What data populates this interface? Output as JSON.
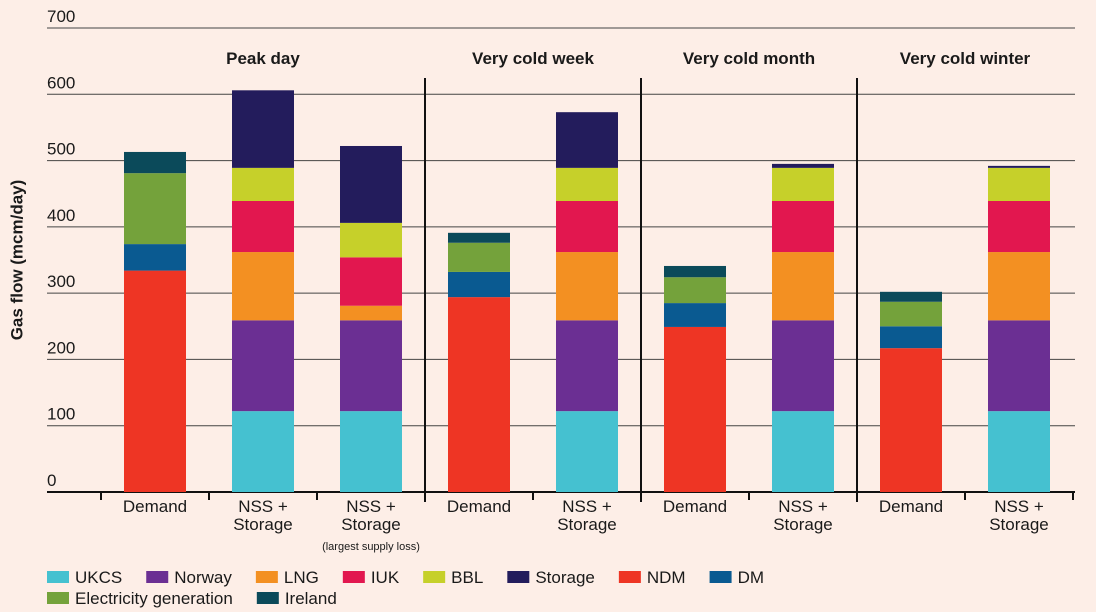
{
  "chart_data": {
    "type": "stacked_bar",
    "y_label": "Gas flow (mcm/day)",
    "groups": [
      "Peak day",
      "Very cold week",
      "Very cold month",
      "Very cold winter"
    ],
    "categories": [
      "Demand",
      "NSS + Storage",
      "NSS + Storage",
      "Demand",
      "NSS + Storage",
      "Demand",
      "NSS + Storage",
      "Demand",
      "NSS + Storage"
    ],
    "note": "(largest supply loss)",
    "series": [
      {
        "name": "UKCS",
        "color": "#45c1d0",
        "values": [
          null,
          122,
          122,
          null,
          122,
          null,
          122,
          null,
          122
        ]
      },
      {
        "name": "Norway",
        "color": "#6b2f93",
        "values": [
          null,
          137,
          137,
          null,
          137,
          null,
          137,
          null,
          137
        ]
      },
      {
        "name": "LNG",
        "color": "#f39022",
        "values": [
          null,
          103,
          22,
          null,
          103,
          null,
          103,
          null,
          103
        ]
      },
      {
        "name": "IUK",
        "color": "#e2174f",
        "values": [
          null,
          77,
          73,
          null,
          77,
          null,
          77,
          null,
          77
        ]
      },
      {
        "name": "BBL",
        "color": "#c6d02a",
        "values": [
          null,
          50,
          52,
          null,
          50,
          null,
          50,
          null,
          50
        ]
      },
      {
        "name": "Storage",
        "color": "#231c5c",
        "values": [
          null,
          117,
          116,
          null,
          84,
          null,
          6,
          null,
          3
        ]
      },
      {
        "name": "NDM",
        "color": "#ee3524",
        "values": [
          334,
          null,
          null,
          294,
          null,
          249,
          null,
          217,
          null
        ]
      },
      {
        "name": "DM",
        "color": "#0a5a91",
        "values": [
          40,
          null,
          null,
          38,
          null,
          36,
          null,
          33,
          null
        ]
      },
      {
        "name": "Electricity generation",
        "color": "#74a23b",
        "values": [
          107,
          null,
          null,
          44,
          null,
          39,
          null,
          37,
          null
        ]
      },
      {
        "name": "Ireland",
        "color": "#0b4a5a",
        "values": [
          32,
          null,
          null,
          15,
          null,
          17,
          null,
          15,
          null
        ]
      }
    ],
    "ylim": [
      0,
      700
    ],
    "yticks": [
      0,
      100,
      200,
      300,
      400,
      500,
      600,
      700
    ],
    "grid": true
  }
}
